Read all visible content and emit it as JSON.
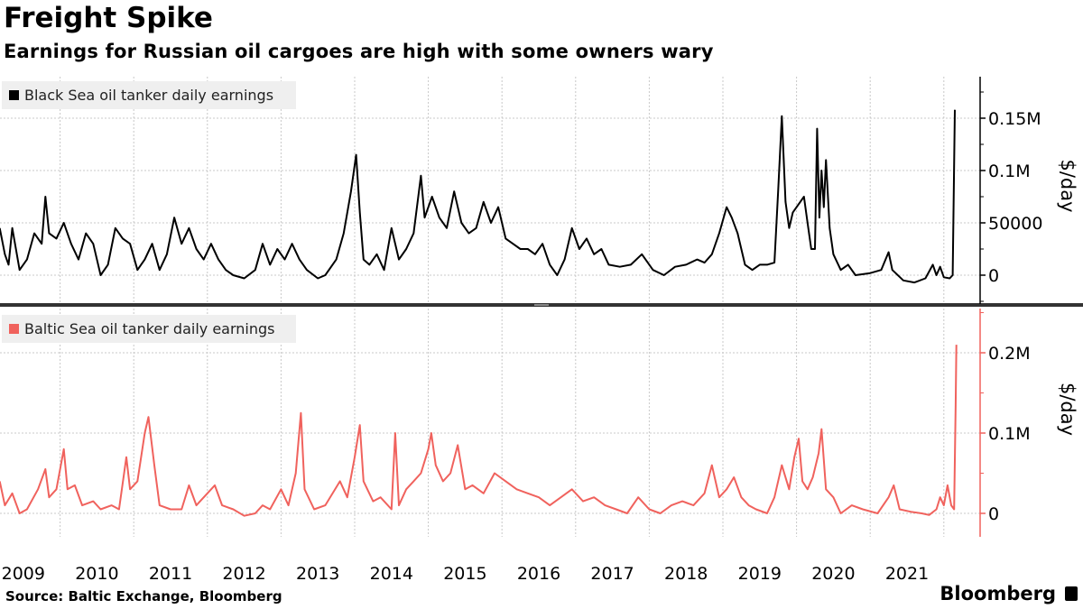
{
  "title": "Freight Spike",
  "subtitle": "Earnings for Russian oil cargoes are high with some owners wary",
  "source": "Source: Baltic Exchange, Bloomberg",
  "brand": "Bloomberg",
  "chart_data": [
    {
      "type": "line",
      "legend": "Black Sea oil tanker daily earnings",
      "color": "#000000",
      "ylabel": "$/day",
      "yticks": [
        {
          "v": 0,
          "label": "0"
        },
        {
          "v": 50000,
          "label": "50000"
        },
        {
          "v": 100000,
          "label": "0.1M"
        },
        {
          "v": 150000,
          "label": "0.15M"
        }
      ],
      "ylim": [
        -27000,
        190000
      ],
      "unit_multiplier": 1000,
      "points": [
        [
          2009.18,
          45
        ],
        [
          2009.25,
          20
        ],
        [
          2009.3,
          10
        ],
        [
          2009.35,
          45
        ],
        [
          2009.45,
          5
        ],
        [
          2009.55,
          15
        ],
        [
          2009.65,
          40
        ],
        [
          2009.75,
          30
        ],
        [
          2009.8,
          75
        ],
        [
          2009.85,
          40
        ],
        [
          2009.95,
          35
        ],
        [
          2010.05,
          50
        ],
        [
          2010.15,
          30
        ],
        [
          2010.25,
          15
        ],
        [
          2010.35,
          40
        ],
        [
          2010.45,
          30
        ],
        [
          2010.55,
          0
        ],
        [
          2010.65,
          10
        ],
        [
          2010.75,
          45
        ],
        [
          2010.85,
          35
        ],
        [
          2010.95,
          30
        ],
        [
          2011.05,
          5
        ],
        [
          2011.15,
          15
        ],
        [
          2011.25,
          30
        ],
        [
          2011.35,
          5
        ],
        [
          2011.45,
          20
        ],
        [
          2011.55,
          55
        ],
        [
          2011.65,
          30
        ],
        [
          2011.75,
          45
        ],
        [
          2011.85,
          25
        ],
        [
          2011.95,
          15
        ],
        [
          2012.05,
          30
        ],
        [
          2012.15,
          15
        ],
        [
          2012.25,
          5
        ],
        [
          2012.35,
          0
        ],
        [
          2012.5,
          -3
        ],
        [
          2012.65,
          5
        ],
        [
          2012.75,
          30
        ],
        [
          2012.85,
          10
        ],
        [
          2012.95,
          25
        ],
        [
          2013.05,
          15
        ],
        [
          2013.15,
          30
        ],
        [
          2013.25,
          15
        ],
        [
          2013.35,
          5
        ],
        [
          2013.5,
          -3
        ],
        [
          2013.6,
          0
        ],
        [
          2013.75,
          15
        ],
        [
          2013.85,
          40
        ],
        [
          2013.95,
          80
        ],
        [
          2014.02,
          115
        ],
        [
          2014.07,
          60
        ],
        [
          2014.12,
          15
        ],
        [
          2014.2,
          10
        ],
        [
          2014.3,
          20
        ],
        [
          2014.4,
          5
        ],
        [
          2014.5,
          45
        ],
        [
          2014.6,
          15
        ],
        [
          2014.7,
          25
        ],
        [
          2014.8,
          40
        ],
        [
          2014.9,
          95
        ],
        [
          2014.95,
          55
        ],
        [
          2015.05,
          75
        ],
        [
          2015.15,
          55
        ],
        [
          2015.25,
          45
        ],
        [
          2015.35,
          80
        ],
        [
          2015.45,
          50
        ],
        [
          2015.55,
          40
        ],
        [
          2015.65,
          45
        ],
        [
          2015.75,
          70
        ],
        [
          2015.85,
          50
        ],
        [
          2015.95,
          65
        ],
        [
          2016.05,
          35
        ],
        [
          2016.15,
          30
        ],
        [
          2016.25,
          25
        ],
        [
          2016.35,
          25
        ],
        [
          2016.45,
          20
        ],
        [
          2016.55,
          30
        ],
        [
          2016.65,
          10
        ],
        [
          2016.75,
          0
        ],
        [
          2016.85,
          15
        ],
        [
          2016.95,
          45
        ],
        [
          2017.05,
          25
        ],
        [
          2017.15,
          35
        ],
        [
          2017.25,
          20
        ],
        [
          2017.35,
          25
        ],
        [
          2017.45,
          10
        ],
        [
          2017.6,
          8
        ],
        [
          2017.75,
          10
        ],
        [
          2017.9,
          20
        ],
        [
          2018.05,
          5
        ],
        [
          2018.2,
          0
        ],
        [
          2018.35,
          8
        ],
        [
          2018.5,
          10
        ],
        [
          2018.65,
          15
        ],
        [
          2018.75,
          12
        ],
        [
          2018.85,
          20
        ],
        [
          2018.95,
          40
        ],
        [
          2019.05,
          65
        ],
        [
          2019.12,
          55
        ],
        [
          2019.2,
          40
        ],
        [
          2019.3,
          10
        ],
        [
          2019.4,
          5
        ],
        [
          2019.5,
          10
        ],
        [
          2019.6,
          10
        ],
        [
          2019.7,
          12
        ],
        [
          2019.75,
          80
        ],
        [
          2019.8,
          152
        ],
        [
          2019.85,
          70
        ],
        [
          2019.9,
          45
        ],
        [
          2019.95,
          60
        ],
        [
          2020.05,
          70
        ],
        [
          2020.1,
          75
        ],
        [
          2020.15,
          50
        ],
        [
          2020.2,
          25
        ],
        [
          2020.25,
          25
        ],
        [
          2020.28,
          140
        ],
        [
          2020.31,
          55
        ],
        [
          2020.34,
          100
        ],
        [
          2020.37,
          65
        ],
        [
          2020.4,
          110
        ],
        [
          2020.45,
          45
        ],
        [
          2020.5,
          20
        ],
        [
          2020.6,
          5
        ],
        [
          2020.7,
          10
        ],
        [
          2020.8,
          0
        ],
        [
          2021.0,
          2
        ],
        [
          2021.15,
          5
        ],
        [
          2021.25,
          22
        ],
        [
          2021.3,
          5
        ],
        [
          2021.45,
          -5
        ],
        [
          2021.6,
          -7
        ],
        [
          2021.75,
          -3
        ],
        [
          2021.85,
          10
        ],
        [
          2021.9,
          0
        ],
        [
          2021.95,
          8
        ],
        [
          2022.0,
          -2
        ],
        [
          2022.08,
          -3
        ],
        [
          2022.12,
          0
        ],
        [
          2022.15,
          158
        ]
      ]
    },
    {
      "type": "line",
      "legend": "Baltic Sea oil tanker daily earnings",
      "color": "#f0625d",
      "ylabel": "$/day",
      "yticks": [
        {
          "v": 0,
          "label": "0"
        },
        {
          "v": 100000,
          "label": "0.1M"
        },
        {
          "v": 200000,
          "label": "0.2M"
        }
      ],
      "ylim": [
        -29000,
        255000
      ],
      "unit_multiplier": 1000,
      "points": [
        [
          2009.18,
          40
        ],
        [
          2009.25,
          10
        ],
        [
          2009.35,
          25
        ],
        [
          2009.45,
          0
        ],
        [
          2009.55,
          5
        ],
        [
          2009.7,
          30
        ],
        [
          2009.8,
          55
        ],
        [
          2009.85,
          20
        ],
        [
          2009.95,
          30
        ],
        [
          2010.05,
          80
        ],
        [
          2010.1,
          30
        ],
        [
          2010.2,
          35
        ],
        [
          2010.3,
          10
        ],
        [
          2010.45,
          15
        ],
        [
          2010.55,
          5
        ],
        [
          2010.7,
          10
        ],
        [
          2010.8,
          5
        ],
        [
          2010.9,
          70
        ],
        [
          2010.95,
          30
        ],
        [
          2011.05,
          40
        ],
        [
          2011.15,
          100
        ],
        [
          2011.2,
          120
        ],
        [
          2011.28,
          60
        ],
        [
          2011.35,
          10
        ],
        [
          2011.5,
          5
        ],
        [
          2011.65,
          5
        ],
        [
          2011.75,
          35
        ],
        [
          2011.85,
          10
        ],
        [
          2012.0,
          25
        ],
        [
          2012.1,
          35
        ],
        [
          2012.2,
          10
        ],
        [
          2012.35,
          5
        ],
        [
          2012.5,
          -3
        ],
        [
          2012.65,
          0
        ],
        [
          2012.75,
          10
        ],
        [
          2012.85,
          5
        ],
        [
          2013.0,
          30
        ],
        [
          2013.1,
          10
        ],
        [
          2013.2,
          50
        ],
        [
          2013.27,
          125
        ],
        [
          2013.32,
          30
        ],
        [
          2013.45,
          5
        ],
        [
          2013.6,
          10
        ],
        [
          2013.8,
          40
        ],
        [
          2013.9,
          20
        ],
        [
          2014.0,
          70
        ],
        [
          2014.07,
          110
        ],
        [
          2014.12,
          40
        ],
        [
          2014.25,
          15
        ],
        [
          2014.35,
          20
        ],
        [
          2014.5,
          5
        ],
        [
          2014.55,
          100
        ],
        [
          2014.6,
          10
        ],
        [
          2014.7,
          30
        ],
        [
          2014.8,
          40
        ],
        [
          2014.9,
          50
        ],
        [
          2015.0,
          80
        ],
        [
          2015.04,
          100
        ],
        [
          2015.1,
          60
        ],
        [
          2015.2,
          40
        ],
        [
          2015.3,
          50
        ],
        [
          2015.4,
          85
        ],
        [
          2015.5,
          30
        ],
        [
          2015.6,
          35
        ],
        [
          2015.75,
          25
        ],
        [
          2015.9,
          50
        ],
        [
          2016.05,
          40
        ],
        [
          2016.2,
          30
        ],
        [
          2016.35,
          25
        ],
        [
          2016.5,
          20
        ],
        [
          2016.65,
          10
        ],
        [
          2016.8,
          20
        ],
        [
          2016.95,
          30
        ],
        [
          2017.1,
          15
        ],
        [
          2017.25,
          20
        ],
        [
          2017.4,
          10
        ],
        [
          2017.55,
          5
        ],
        [
          2017.7,
          0
        ],
        [
          2017.85,
          20
        ],
        [
          2018.0,
          5
        ],
        [
          2018.15,
          0
        ],
        [
          2018.3,
          10
        ],
        [
          2018.45,
          15
        ],
        [
          2018.6,
          10
        ],
        [
          2018.75,
          25
        ],
        [
          2018.85,
          60
        ],
        [
          2018.95,
          20
        ],
        [
          2019.05,
          30
        ],
        [
          2019.15,
          45
        ],
        [
          2019.25,
          20
        ],
        [
          2019.35,
          10
        ],
        [
          2019.45,
          5
        ],
        [
          2019.6,
          0
        ],
        [
          2019.7,
          20
        ],
        [
          2019.8,
          60
        ],
        [
          2019.9,
          30
        ],
        [
          2019.97,
          70
        ],
        [
          2020.03,
          93
        ],
        [
          2020.08,
          40
        ],
        [
          2020.15,
          30
        ],
        [
          2020.22,
          45
        ],
        [
          2020.3,
          75
        ],
        [
          2020.34,
          105
        ],
        [
          2020.4,
          30
        ],
        [
          2020.5,
          20
        ],
        [
          2020.6,
          0
        ],
        [
          2020.75,
          10
        ],
        [
          2020.9,
          5
        ],
        [
          2021.1,
          0
        ],
        [
          2021.25,
          20
        ],
        [
          2021.32,
          35
        ],
        [
          2021.4,
          5
        ],
        [
          2021.55,
          2
        ],
        [
          2021.7,
          0
        ],
        [
          2021.8,
          -2
        ],
        [
          2021.9,
          5
        ],
        [
          2021.95,
          20
        ],
        [
          2022.0,
          10
        ],
        [
          2022.05,
          35
        ],
        [
          2022.1,
          10
        ],
        [
          2022.14,
          5
        ],
        [
          2022.16,
          135
        ],
        [
          2022.17,
          210
        ]
      ]
    }
  ],
  "x_axis": {
    "years": [
      "2009",
      "2010",
      "2011",
      "2012",
      "2013",
      "2014",
      "2015",
      "2016",
      "2017",
      "2018",
      "2019",
      "2020",
      "2021"
    ]
  }
}
